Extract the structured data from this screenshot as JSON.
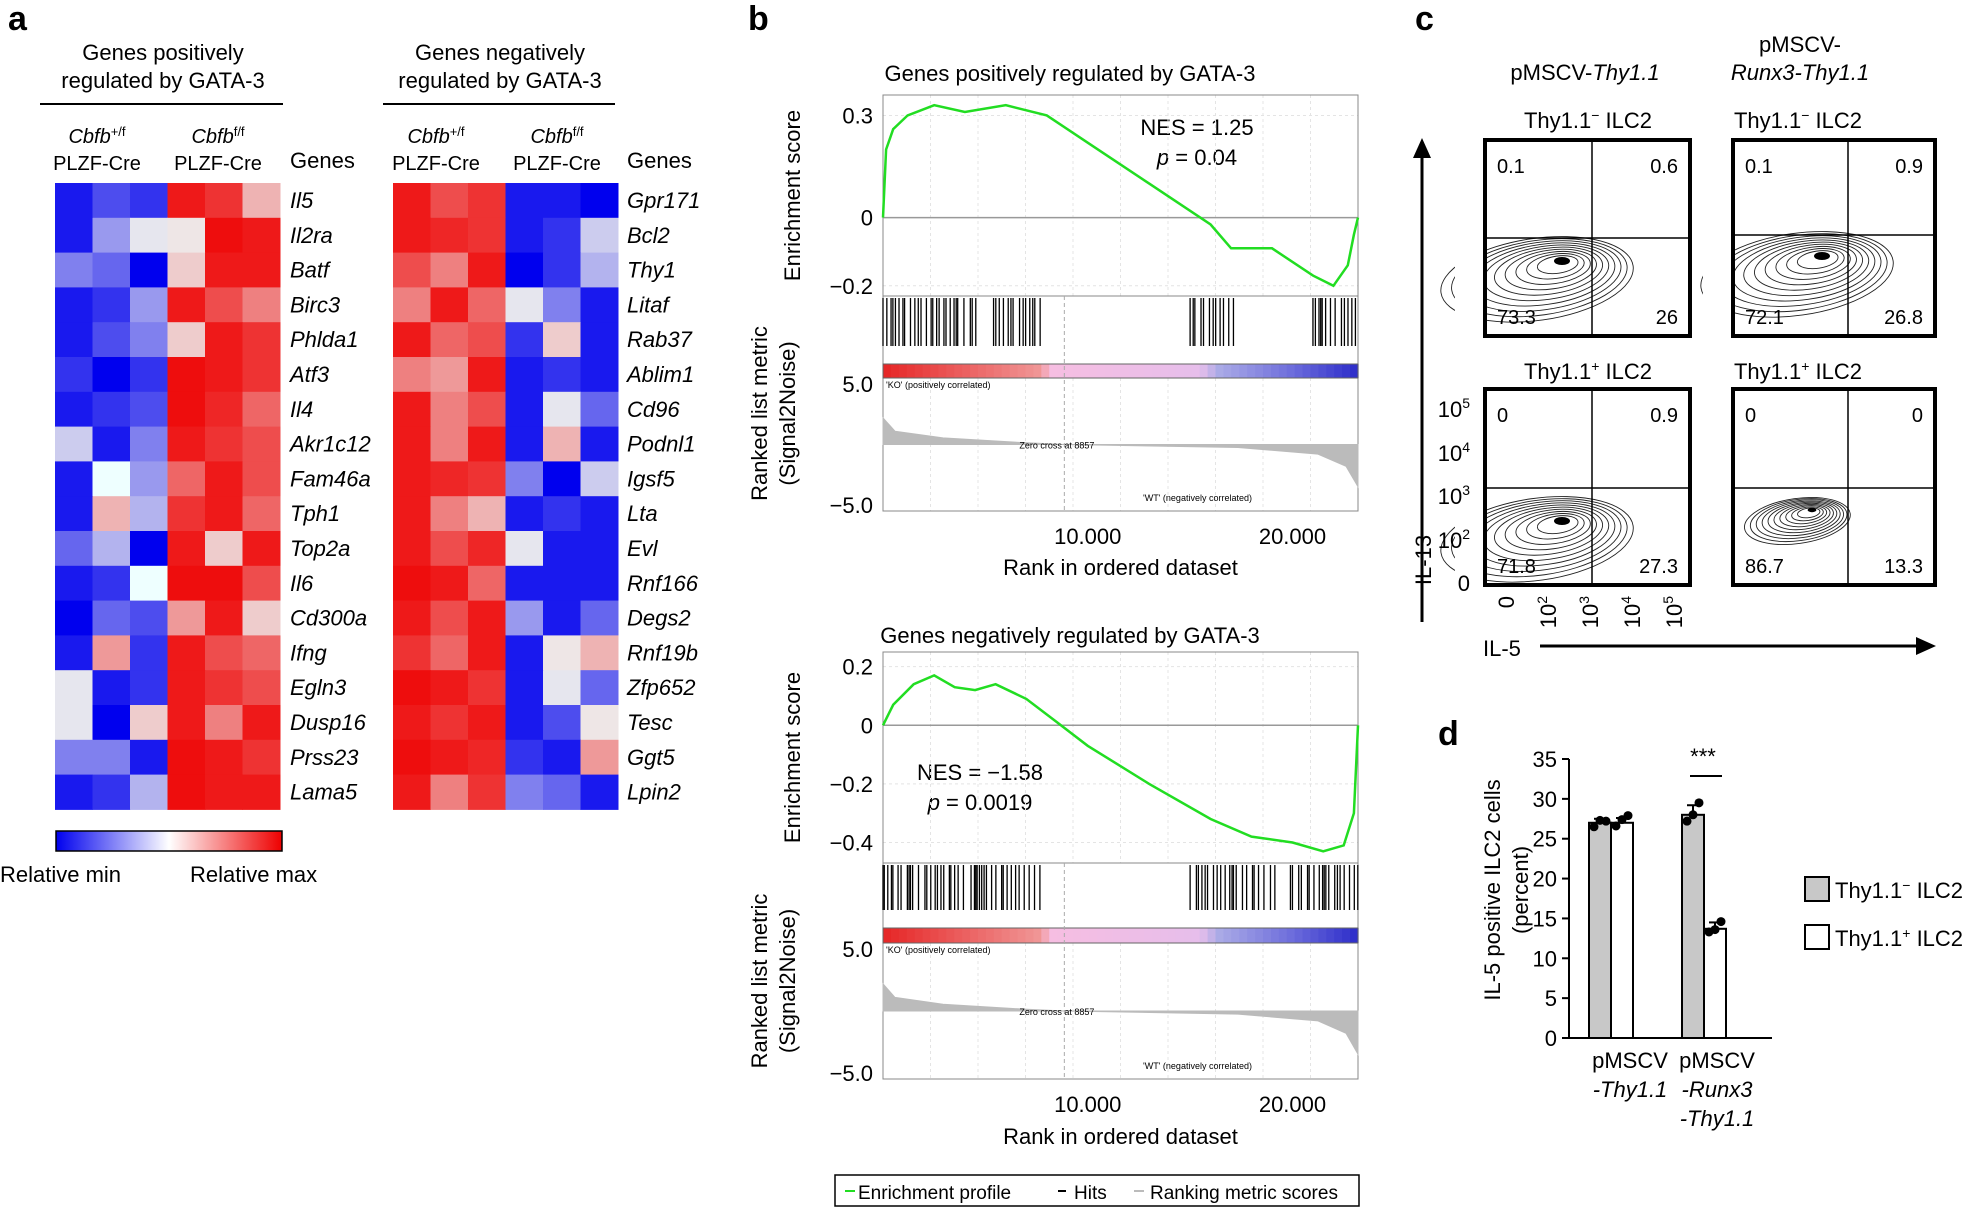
{
  "panels": {
    "a": "a",
    "b": "b",
    "c": "c",
    "d": "d"
  },
  "heatmap": {
    "pos_title": [
      "Genes positively",
      "regulated by GATA-3"
    ],
    "neg_title": [
      "Genes negatively",
      "regulated by GATA-3"
    ],
    "group_wt": {
      "gene": "Cbfb",
      "sup": "+/f",
      "line": "PLZF-Cre"
    },
    "group_ko": {
      "gene": "Cbfb",
      "sup": "f/f",
      "line": "PLZF-Cre"
    },
    "genes_header": "Genes",
    "scale_min": "Relative min",
    "scale_max": "Relative max",
    "pos_genes": [
      "Il5",
      "Il2ra",
      "Batf",
      "Birc3",
      "Phlda1",
      "Atf3",
      "Il4",
      "Akr1c12",
      "Fam46a",
      "Tph1",
      "Top2a",
      "Il6",
      "Cd300a",
      "Ifng",
      "Egln3",
      "Dusp16",
      "Prss23",
      "Lama5"
    ],
    "neg_genes": [
      "Gpr171",
      "Bcl2",
      "Thy1",
      "Litaf",
      "Rab37",
      "Ablim1",
      "Cd96",
      "Podnl1",
      "Igsf5",
      "Lta",
      "Evl",
      "Rnf166",
      "Degs2",
      "Rnf19b",
      "Zfp652",
      "Tesc",
      "Ggt5",
      "Lpin2"
    ],
    "pos_values": [
      [
        -0.9,
        -0.7,
        -0.8,
        0.9,
        0.8,
        0.3
      ],
      [
        -0.9,
        -0.4,
        -0.1,
        0.1,
        0.95,
        0.9
      ],
      [
        -0.5,
        -0.6,
        -1,
        0.2,
        0.9,
        0.9
      ],
      [
        -0.9,
        -0.8,
        -0.4,
        0.9,
        0.7,
        0.5
      ],
      [
        -0.9,
        -0.7,
        -0.5,
        0.2,
        0.9,
        0.8
      ],
      [
        -0.8,
        -1,
        -0.8,
        0.95,
        0.9,
        0.8
      ],
      [
        -0.9,
        -0.8,
        -0.7,
        0.95,
        0.85,
        0.6
      ],
      [
        -0.2,
        -0.9,
        -0.5,
        0.9,
        0.8,
        0.7
      ],
      [
        -0.9,
        0,
        -0.4,
        0.6,
        0.9,
        0.7
      ],
      [
        -0.9,
        0.3,
        -0.3,
        0.8,
        0.9,
        0.6
      ],
      [
        -0.6,
        -0.3,
        -1,
        0.9,
        0.2,
        0.9
      ],
      [
        -0.9,
        -0.8,
        0,
        0.95,
        0.95,
        0.7
      ],
      [
        -1,
        -0.6,
        -0.7,
        0.4,
        0.9,
        0.2
      ],
      [
        -0.9,
        0.4,
        -0.8,
        0.9,
        0.7,
        0.6
      ],
      [
        -0.1,
        -0.9,
        -0.8,
        0.9,
        0.8,
        0.7
      ],
      [
        -0.1,
        -1,
        0.2,
        0.9,
        0.5,
        0.9
      ],
      [
        -0.5,
        -0.5,
        -0.9,
        0.95,
        0.9,
        0.8
      ],
      [
        -0.9,
        -0.8,
        -0.3,
        0.95,
        0.9,
        0.9
      ]
    ],
    "neg_values": [
      [
        0.9,
        0.7,
        0.8,
        -0.9,
        -0.9,
        -1
      ],
      [
        0.9,
        0.85,
        0.8,
        -0.9,
        -0.8,
        -0.2
      ],
      [
        0.7,
        0.5,
        0.9,
        -1,
        -0.8,
        -0.3
      ],
      [
        0.5,
        0.9,
        0.6,
        -0.1,
        -0.5,
        -0.9
      ],
      [
        0.9,
        0.6,
        0.7,
        -0.8,
        0.2,
        -0.9
      ],
      [
        0.5,
        0.4,
        0.9,
        -0.9,
        -0.8,
        -0.9
      ],
      [
        0.9,
        0.5,
        0.7,
        -0.9,
        -0.1,
        -0.6
      ],
      [
        0.9,
        0.5,
        0.9,
        -0.9,
        0.3,
        -0.9
      ],
      [
        0.9,
        0.85,
        0.8,
        -0.5,
        -1,
        -0.2
      ],
      [
        0.9,
        0.5,
        0.3,
        -0.9,
        -0.8,
        -0.9
      ],
      [
        0.9,
        0.7,
        0.85,
        -0.1,
        -0.9,
        -0.9
      ],
      [
        0.95,
        0.9,
        0.6,
        -0.9,
        -0.9,
        -0.9
      ],
      [
        0.9,
        0.7,
        0.9,
        -0.4,
        -0.9,
        -0.6
      ],
      [
        0.8,
        0.6,
        0.9,
        -0.9,
        0.1,
        0.3
      ],
      [
        0.95,
        0.9,
        0.8,
        -0.9,
        -0.1,
        -0.6
      ],
      [
        0.9,
        0.8,
        0.9,
        -0.9,
        -0.7,
        0.1
      ],
      [
        0.95,
        0.9,
        0.85,
        -0.8,
        -0.9,
        0.4
      ],
      [
        0.9,
        0.5,
        0.8,
        -0.5,
        -0.6,
        -0.9
      ]
    ]
  },
  "gsea": {
    "plots": [
      {
        "title": "Genes positively regulated by GATA-3",
        "nes_label": "NES = 1.25",
        "p_name": "p",
        "p_value": " = 0.04",
        "es_ticks": [
          "0.3",
          "0",
          "−0.2"
        ],
        "es_tick_values": [
          0.3,
          0,
          -0.2
        ],
        "es_range": [
          -0.23,
          0.36
        ],
        "es_curve": [
          [
            0,
            0
          ],
          [
            150,
            0.2
          ],
          [
            500,
            0.26
          ],
          [
            1200,
            0.3
          ],
          [
            2500,
            0.33
          ],
          [
            4000,
            0.31
          ],
          [
            6000,
            0.33
          ],
          [
            8000,
            0.3
          ],
          [
            10000,
            0.22
          ],
          [
            13000,
            0.1
          ],
          [
            16000,
            -0.02
          ],
          [
            17000,
            -0.09
          ],
          [
            19000,
            -0.09
          ],
          [
            21000,
            -0.17
          ],
          [
            22000,
            -0.2
          ],
          [
            22700,
            -0.14
          ],
          [
            23000,
            -0.05
          ],
          [
            23200,
            0
          ]
        ],
        "hit_ranges": [
          [
            0,
            4800
          ],
          [
            5400,
            7700
          ],
          [
            15000,
            17200
          ],
          [
            21000,
            23200
          ]
        ]
      },
      {
        "title": "Genes negatively regulated by GATA-3",
        "nes_label": "NES = −1.58",
        "p_name": "p",
        "p_value": " = 0.0019",
        "es_ticks": [
          "0.2",
          "0",
          "−0.2",
          "−0.4"
        ],
        "es_tick_values": [
          0.2,
          0,
          -0.2,
          -0.4
        ],
        "es_range": [
          -0.47,
          0.25
        ],
        "es_curve": [
          [
            0,
            0
          ],
          [
            500,
            0.07
          ],
          [
            1500,
            0.14
          ],
          [
            2500,
            0.17
          ],
          [
            3500,
            0.13
          ],
          [
            4500,
            0.12
          ],
          [
            5500,
            0.14
          ],
          [
            7000,
            0.09
          ],
          [
            8500,
            0.01
          ],
          [
            10000,
            -0.07
          ],
          [
            13000,
            -0.2
          ],
          [
            16000,
            -0.32
          ],
          [
            18000,
            -0.38
          ],
          [
            20000,
            -0.4
          ],
          [
            21500,
            -0.43
          ],
          [
            22500,
            -0.41
          ],
          [
            23000,
            -0.3
          ],
          [
            23200,
            0
          ]
        ],
        "hit_ranges": [
          [
            0,
            4000
          ],
          [
            4300,
            7800
          ],
          [
            15000,
            19300
          ],
          [
            19900,
            23200
          ]
        ]
      }
    ],
    "ylabel_es": "Enrichment score",
    "ylabel_metric": [
      "Ranked list metric",
      "(Signal2Noise)"
    ],
    "metric_ticks": [
      "5.0",
      "−5.0"
    ],
    "metric_range": [
      -5.5,
      5.5
    ],
    "x_ticks": [
      "10.000",
      "20.000"
    ],
    "x_tick_values": [
      10000,
      20000
    ],
    "x_max": 23200,
    "xlabel": "Rank in ordered dataset",
    "ko_label": "'KO' (positively correlated)",
    "wt_label": "'WT' (negatively correlated)",
    "zero_cross": "Zero cross at 8857",
    "zero_cross_rank": 8857,
    "legend": [
      "Enrichment profile",
      "Hits",
      "Ranking metric scores"
    ],
    "colors": {
      "profile": "#22dd22",
      "hits": "#000000",
      "metric": "#bbbbbb"
    }
  },
  "flow": {
    "col1_title_plain": "pMSCV-",
    "col1_title_ital": "Thy1.1",
    "col2_title_line1": "pMSCV-",
    "col2_title_line2": "Runx3-Thy1.1",
    "gate_neg_base": "Thy1.1",
    "gate_neg_sup": "−",
    "gate_pos_base": "Thy1.1",
    "gate_pos_sup": "+",
    "gate_suffix": " ILC2",
    "y_axis_label": "IL-13",
    "x_axis_label": "IL-5",
    "y_ticks": [
      "10",
      "10",
      "10",
      "10",
      "0"
    ],
    "y_tick_exps": [
      "5",
      "4",
      "3",
      "2",
      ""
    ],
    "x_ticks": [
      "0",
      "10",
      "10",
      "10",
      "10"
    ],
    "x_tick_exps": [
      "",
      "2",
      "3",
      "4",
      "5"
    ],
    "quadrants": [
      [
        "0.1",
        "0.6",
        "73.3",
        "26"
      ],
      [
        "0.1",
        "0.9",
        "72.1",
        "26.8"
      ],
      [
        "0",
        "0.9",
        "71.8",
        "27.3"
      ],
      [
        "0",
        "0",
        "86.7",
        "13.3"
      ]
    ]
  },
  "chart_data": {
    "type": "bar",
    "ylabel": "IL-5 positive ILC2 cells (percent)",
    "ylabel_lines": [
      "IL-5 positive ILC2 cells",
      "(percent)"
    ],
    "ylim": [
      0,
      35
    ],
    "y_ticks": [
      0,
      5,
      10,
      15,
      20,
      25,
      30,
      35
    ],
    "categories": [
      [
        "pMSCV",
        "-Thy1.1"
      ],
      [
        "pMSCV",
        "-Runx3",
        "-Thy1.1"
      ]
    ],
    "series": [
      {
        "name": "Thy1.1− ILC2",
        "name_base": "Thy1.1",
        "name_sup": "−",
        "name_suffix": " ILC2",
        "values": [
          27,
          28
        ],
        "errors": [
          0.5,
          1.2
        ],
        "points": [
          [
            26.5,
            27.3,
            27.2
          ],
          [
            27.2,
            28.0,
            29.5
          ]
        ],
        "color": "#c8c8c8"
      },
      {
        "name": "Thy1.1+ ILC2",
        "name_base": "Thy1.1",
        "name_sup": "+",
        "name_suffix": " ILC2",
        "values": [
          27,
          13.7
        ],
        "errors": [
          0.6,
          0.8
        ],
        "points": [
          [
            26.6,
            27.4,
            27.9
          ],
          [
            13.3,
            13.6,
            14.6
          ]
        ],
        "color": "#ffffff"
      }
    ],
    "significance": "***"
  }
}
